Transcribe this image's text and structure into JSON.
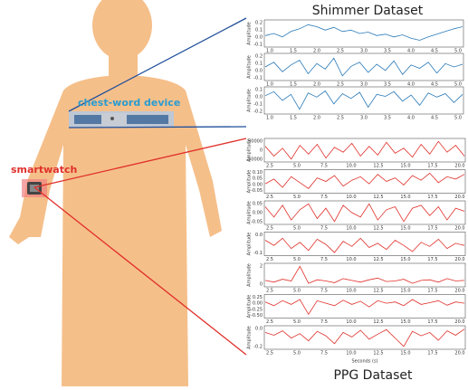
{
  "labels": {
    "top_title": "Shimmer Dataset",
    "bottom_title": "PPG Dataset",
    "chest": "chest-word device",
    "watch": "smartwatch"
  },
  "shimmer": {
    "ylabel": "Amplitude",
    "xticks": [
      "1.0",
      "1.5",
      "2.0",
      "2.5",
      "3.0",
      "3.5",
      "4.0",
      "4.5",
      "5.0"
    ],
    "color": "#2a7ab8",
    "plots": [
      {
        "yticks": [
          "0.2",
          "0.1",
          "0.0",
          "-0.1"
        ],
        "ylim": [
          -0.15,
          0.25
        ],
        "values": [
          0.02,
          0.05,
          0.0,
          0.08,
          0.12,
          0.18,
          0.15,
          0.1,
          0.14,
          0.08,
          0.1,
          0.05,
          0.07,
          0.02,
          0.04,
          0.0,
          0.03,
          -0.02,
          -0.05,
          0.0,
          0.04,
          0.08,
          0.12,
          0.15
        ]
      },
      {
        "yticks": [
          "0.2",
          "0.1",
          "0.0",
          "-0.1"
        ],
        "ylim": [
          -0.15,
          0.25
        ],
        "values": [
          0.05,
          0.12,
          -0.02,
          0.08,
          0.15,
          -0.05,
          0.1,
          0.02,
          0.18,
          -0.08,
          0.06,
          0.12,
          -0.03,
          0.09,
          0.0,
          0.14,
          -0.06,
          0.08,
          0.03,
          0.12,
          -0.04,
          0.1,
          0.05,
          0.09
        ]
      },
      {
        "yticks": [
          "0.1",
          "0.0",
          "-0.1",
          "-0.2"
        ],
        "ylim": [
          -0.25,
          0.15
        ],
        "values": [
          0.02,
          0.08,
          -0.05,
          0.04,
          -0.18,
          0.06,
          0.0,
          0.09,
          -0.1,
          0.05,
          -0.02,
          0.07,
          -0.15,
          0.04,
          0.01,
          0.08,
          -0.06,
          0.03,
          -0.12,
          0.06,
          0.0,
          0.05,
          -0.08,
          0.04
        ]
      }
    ]
  },
  "ppg": {
    "ylabel": "Amplitude",
    "xlabel": "Seconds (s)",
    "xticks": [
      "2.5",
      "5.0",
      "7.5",
      "10.0",
      "12.5",
      "15.0",
      "17.5",
      "20.0"
    ],
    "color": "#e0302a",
    "plots": [
      {
        "yticks": [
          "50000",
          "0",
          "-50000"
        ],
        "ylim": [
          -60000,
          60000
        ],
        "values": [
          20000,
          -30000,
          10000,
          -45000,
          25000,
          -20000,
          30000,
          -40000,
          15000,
          -10000,
          35000,
          -30000,
          20000,
          -25000,
          40000,
          -15000,
          10000,
          -35000,
          30000,
          -20000,
          45000,
          -10000,
          25000,
          -30000
        ]
      },
      {
        "yticks": [
          "0.10",
          "0.05",
          "0.00",
          "-0.05"
        ],
        "ylim": [
          -0.08,
          0.12
        ],
        "values": [
          0.0,
          0.04,
          -0.03,
          0.06,
          0.01,
          -0.04,
          0.05,
          0.02,
          0.07,
          -0.02,
          0.03,
          0.06,
          0.0,
          0.08,
          0.02,
          0.05,
          -0.01,
          0.07,
          0.03,
          0.09,
          0.01,
          0.06,
          0.04,
          0.08
        ]
      },
      {
        "yticks": [
          "0.05",
          "0.00",
          "-0.05"
        ],
        "ylim": [
          -0.08,
          0.08
        ],
        "values": [
          0.04,
          -0.03,
          0.05,
          -0.05,
          0.02,
          0.06,
          -0.04,
          0.03,
          -0.06,
          0.05,
          0.0,
          -0.03,
          0.06,
          -0.05,
          0.02,
          0.04,
          -0.06,
          0.03,
          0.05,
          -0.02,
          0.04,
          -0.05,
          0.03,
          0.01
        ]
      },
      {
        "yticks": [
          "0.0",
          "-0.1"
        ],
        "ylim": [
          -0.15,
          0.08
        ],
        "values": [
          0.0,
          -0.05,
          0.02,
          -0.08,
          -0.02,
          -0.1,
          0.01,
          -0.04,
          -0.12,
          -0.01,
          -0.06,
          0.02,
          -0.07,
          -0.03,
          -0.09,
          0.0,
          -0.05,
          -0.11,
          -0.02,
          -0.06,
          0.01,
          -0.08,
          -0.03,
          -0.05
        ]
      },
      {
        "yticks": [
          "2",
          "0"
        ],
        "ylim": [
          -1,
          3
        ],
        "values": [
          0.1,
          -0.2,
          0.3,
          0.0,
          2.5,
          -0.4,
          0.2,
          0.0,
          -0.3,
          0.4,
          0.1,
          -0.2,
          0.2,
          0.5,
          -0.1,
          0.0,
          0.3,
          -0.4,
          0.1,
          0.2,
          -0.2,
          0.4,
          0.0,
          0.1
        ]
      },
      {
        "yticks": [
          "0.25",
          "0.00",
          "-0.25",
          "-0.50"
        ],
        "ylim": [
          -0.6,
          0.35
        ],
        "values": [
          0.05,
          -0.1,
          0.1,
          -0.05,
          0.15,
          -0.45,
          0.1,
          0.0,
          -0.1,
          0.12,
          -0.05,
          0.08,
          -0.15,
          0.1,
          0.0,
          0.05,
          -0.1,
          0.15,
          -0.05,
          0.02,
          0.1,
          -0.08,
          0.05,
          0.0
        ]
      },
      {
        "yticks": [
          "0.0",
          "-0.2"
        ],
        "ylim": [
          -0.3,
          0.12
        ],
        "values": [
          0.0,
          -0.05,
          0.03,
          -0.1,
          -0.02,
          -0.15,
          0.02,
          -0.06,
          -0.2,
          0.0,
          -0.08,
          0.04,
          -0.12,
          -0.03,
          0.05,
          -0.1,
          -0.25,
          0.02,
          -0.06,
          0.0,
          -0.14,
          0.03,
          -0.05,
          0.06
        ]
      }
    ]
  }
}
